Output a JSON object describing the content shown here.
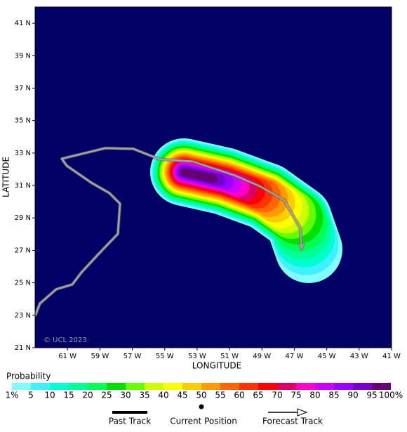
{
  "chart_data": {
    "type": "map",
    "xlabel": "LONGITUDE",
    "ylabel": "LATITUDE",
    "annotation": "© UCL 2023",
    "background": "#000066",
    "xlim": [
      -63,
      -41
    ],
    "ylim": [
      21,
      42
    ],
    "xticks": [
      {
        "value": -61,
        "label": "61 W"
      },
      {
        "value": -59,
        "label": "59 W"
      },
      {
        "value": -57,
        "label": "57 W"
      },
      {
        "value": -55,
        "label": "55 W"
      },
      {
        "value": -53,
        "label": "53 W"
      },
      {
        "value": -51,
        "label": "51 W"
      },
      {
        "value": -49,
        "label": "49 W"
      },
      {
        "value": -47,
        "label": "47 W"
      },
      {
        "value": -45,
        "label": "45 W"
      },
      {
        "value": -43,
        "label": "43 W"
      },
      {
        "value": -41,
        "label": "41 W"
      }
    ],
    "yticks": [
      {
        "value": 21,
        "label": "21 N"
      },
      {
        "value": 23,
        "label": "23 N"
      },
      {
        "value": 25,
        "label": "25 N"
      },
      {
        "value": 27,
        "label": "27 N"
      },
      {
        "value": 29,
        "label": "29 N"
      },
      {
        "value": 31,
        "label": "31 N"
      },
      {
        "value": 33,
        "label": "33 N"
      },
      {
        "value": 35,
        "label": "35 N"
      },
      {
        "value": 37,
        "label": "37 N"
      },
      {
        "value": 39,
        "label": "39 N"
      },
      {
        "value": 41,
        "label": "41 N"
      }
    ],
    "probability": {
      "title": "Probability",
      "levels": [
        1,
        5,
        10,
        15,
        20,
        25,
        30,
        35,
        40,
        45,
        50,
        55,
        60,
        65,
        70,
        75,
        80,
        85,
        90,
        95,
        100
      ],
      "value_labels": [
        "1%",
        "5",
        "10",
        "15",
        "20",
        "25",
        "30",
        "35",
        "40",
        "45",
        "50",
        "55",
        "60",
        "65",
        "70",
        "75",
        "80",
        "85",
        "90",
        "95",
        "100%"
      ],
      "colors": [
        "#80ffff",
        "#40f0ff",
        "#00ffd0",
        "#00ff99",
        "#00ff55",
        "#00e000",
        "#66ff00",
        "#ccff00",
        "#ffff00",
        "#ffcc00",
        "#ff9900",
        "#ff6600",
        "#ff3300",
        "#ff0000",
        "#dd0066",
        "#ff00cc",
        "#cc00ff",
        "#9900ff",
        "#7700cc",
        "#660077"
      ]
    },
    "past_track": {
      "name": "Past Track",
      "color": "#a0a0a0",
      "lon": [
        -63.0,
        -62.7,
        -61.7,
        -60.7,
        -60.14,
        -59.1,
        -57.89,
        -57.76,
        -58.41,
        -59.54,
        -61.05,
        -61.35,
        -58.67,
        -56.94,
        -55.29,
        -53.26
      ],
      "lat": [
        22.95,
        23.73,
        24.6,
        24.9,
        25.64,
        26.76,
        28.02,
        29.88,
        30.53,
        31.18,
        32.22,
        32.65,
        33.3,
        33.26,
        32.61,
        32.48
      ]
    },
    "current_position": {
      "name": "Current Position"
    },
    "forecast_track": {
      "name": "Forecast Track",
      "color": "#a0a0a0",
      "lon": [
        -53.26,
        -50.66,
        -49.14,
        -47.63,
        -46.63,
        -46.54
      ],
      "lat": [
        32.48,
        31.61,
        30.96,
        30.1,
        28.36,
        27.06
      ]
    }
  }
}
